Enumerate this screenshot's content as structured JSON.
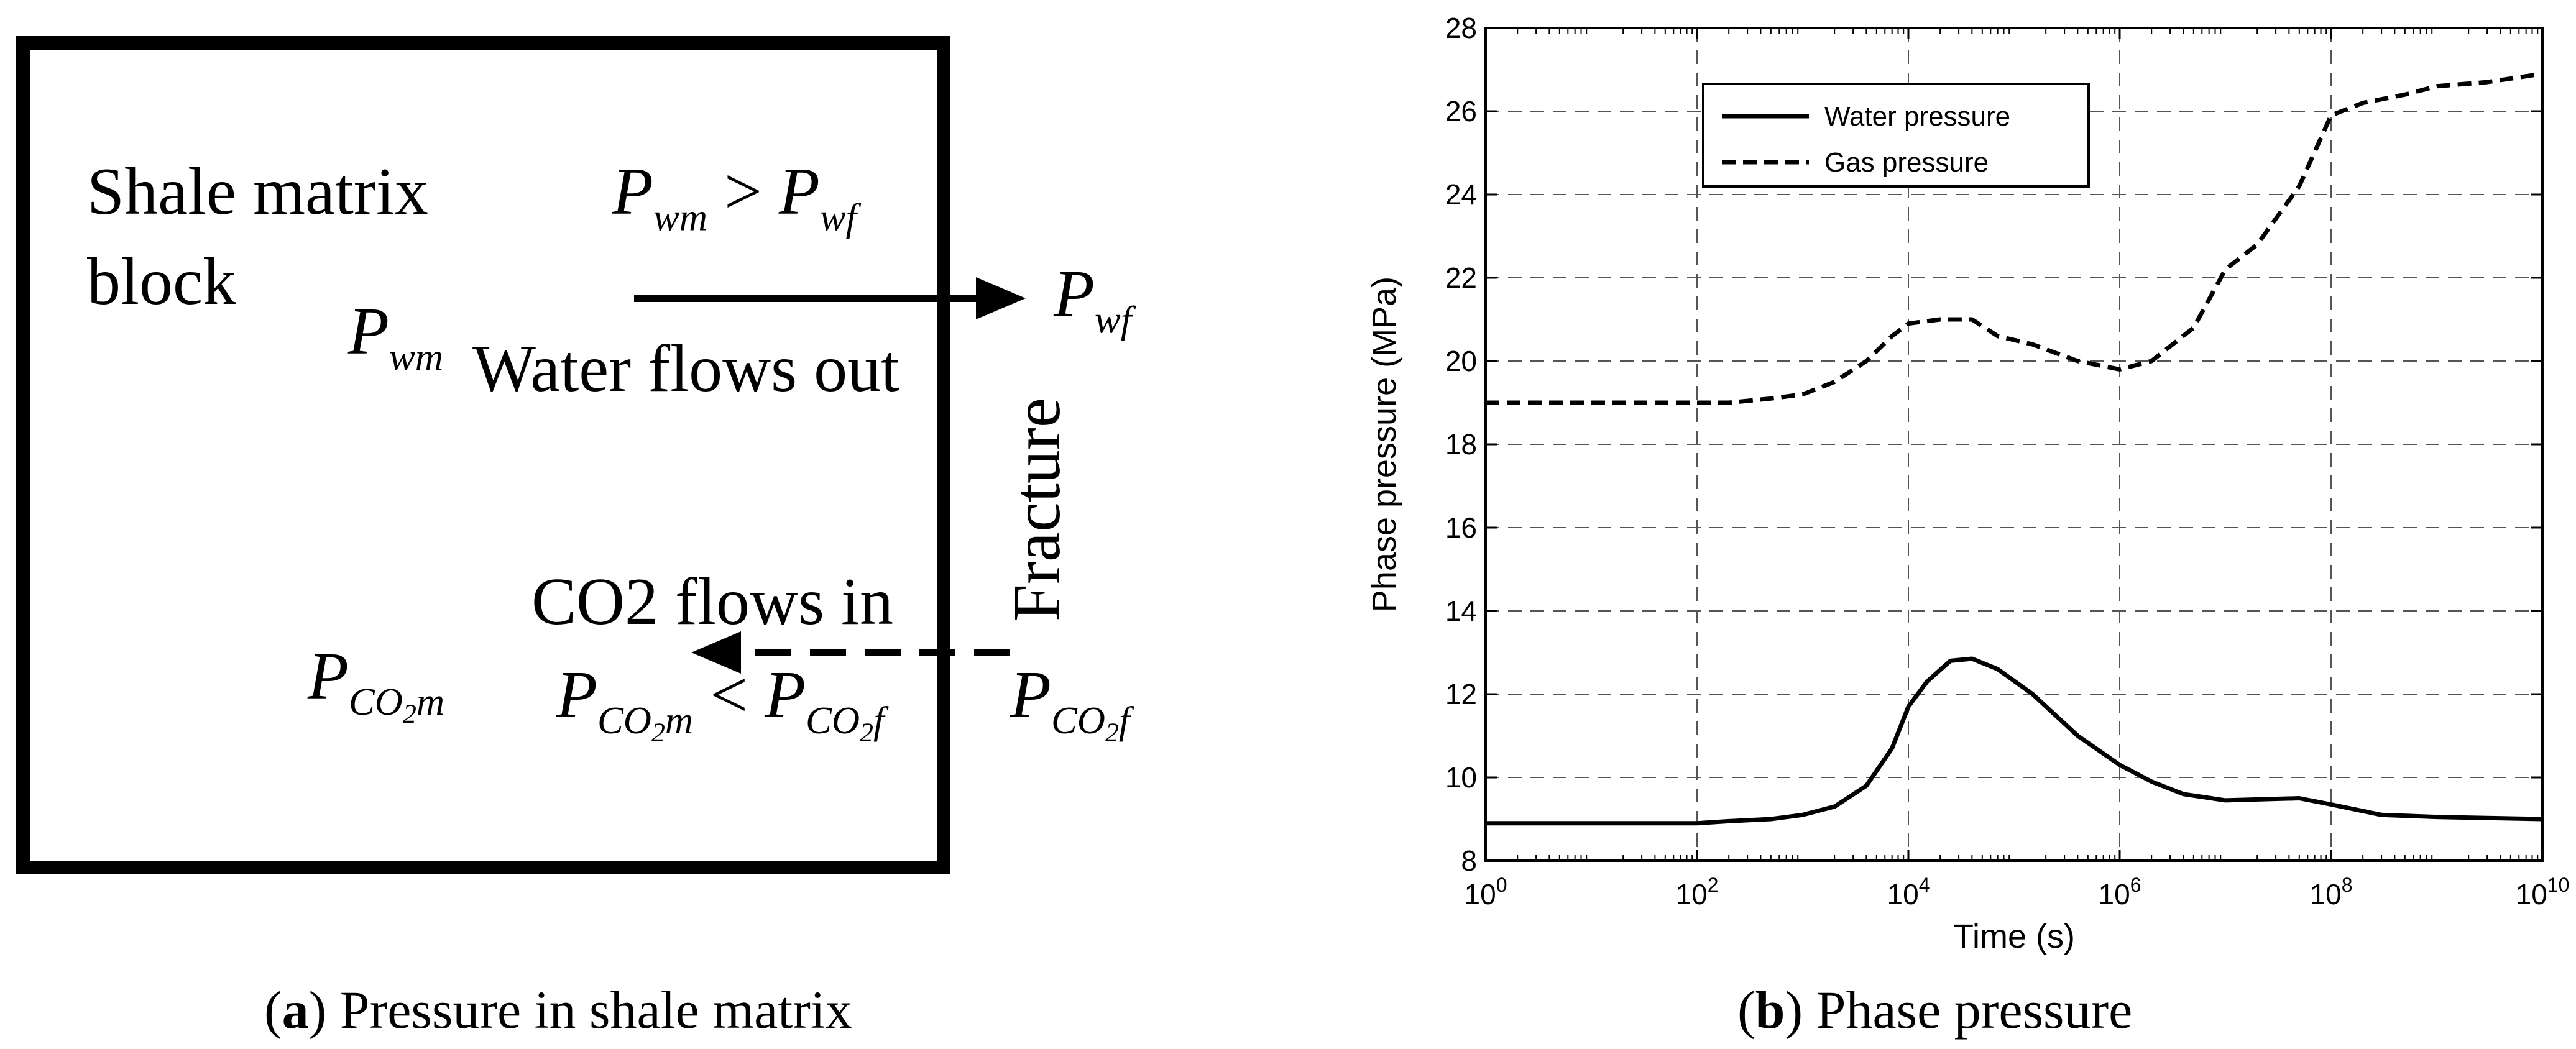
{
  "panel_a": {
    "matrix_label_line1": "Shale matrix",
    "matrix_label_line2": "block",
    "p_wm_gt": {
      "lhs": "P",
      "lhs_sub": "wm",
      "op": ">",
      "rhs": "P",
      "rhs_sub": "wf"
    },
    "p_wm": {
      "p": "P",
      "sub": "wm"
    },
    "p_wf": {
      "p": "P",
      "sub": "wf"
    },
    "water_flow": "Water flows out",
    "fracture": "Fracture",
    "co2_flow": "CO2 flows in",
    "p_co2m": {
      "p": "P",
      "sub": "CO",
      "subsub": "2",
      "sub_tail": "m"
    },
    "p_co2_lt": {
      "lhs": "P",
      "lhs_sub": "CO",
      "lhs_subsub": "2",
      "lhs_tail": "m",
      "op": "<",
      "rhs": "P",
      "rhs_sub": "CO",
      "rhs_subsub": "2",
      "rhs_tail": "f"
    },
    "p_co2f": {
      "p": "P",
      "sub": "CO",
      "subsub": "2",
      "sub_tail": "f"
    },
    "caption_letter": "a",
    "caption_text": " Pressure in shale matrix"
  },
  "panel_b": {
    "caption_letter": "b",
    "caption_text": " Phase pressure"
  },
  "chart_data": {
    "type": "line",
    "xlabel": "Time (s)",
    "ylabel": "Phase pressure (MPa)",
    "xscale": "log",
    "xlim": [
      1,
      10000000000
    ],
    "ylim": [
      8,
      28
    ],
    "x_ticks": [
      {
        "base": "10",
        "exp": "0"
      },
      {
        "base": "10",
        "exp": "2"
      },
      {
        "base": "10",
        "exp": "4"
      },
      {
        "base": "10",
        "exp": "6"
      },
      {
        "base": "10",
        "exp": "8"
      },
      {
        "base": "10",
        "exp": "10"
      }
    ],
    "y_ticks": [
      "8",
      "10",
      "12",
      "14",
      "16",
      "18",
      "20",
      "22",
      "24",
      "26",
      "28"
    ],
    "grid": true,
    "legend_position": "top-left",
    "series": [
      {
        "name": "Water pressure",
        "style": "solid",
        "x": [
          1,
          100,
          200,
          500,
          1000,
          2000,
          4000,
          7000,
          10000,
          15000,
          25000,
          40000,
          70000,
          150000,
          400000,
          1000000,
          2000000,
          4000000,
          10000000,
          50000000,
          100000000,
          300000000,
          1000000000,
          10000000000
        ],
        "y": [
          8.9,
          8.9,
          8.95,
          9.0,
          9.1,
          9.3,
          9.8,
          10.7,
          11.7,
          12.3,
          12.8,
          12.85,
          12.6,
          12.0,
          11.0,
          10.3,
          9.9,
          9.6,
          9.45,
          9.5,
          9.35,
          9.1,
          9.05,
          9.0
        ]
      },
      {
        "name": "Gas pressure",
        "style": "dashed",
        "x": [
          1,
          100,
          200,
          500,
          1000,
          2000,
          4000,
          7000,
          10000,
          20000,
          40000,
          70000,
          150000,
          400000,
          1000000,
          2000000,
          5000000,
          10000000,
          20000000,
          50000000,
          100000000,
          200000000,
          500000000,
          1000000000,
          3000000000,
          10000000000
        ],
        "y": [
          19.0,
          19.0,
          19.0,
          19.1,
          19.2,
          19.5,
          20.0,
          20.6,
          20.9,
          21.0,
          21.0,
          20.6,
          20.4,
          20.0,
          19.8,
          20.0,
          20.8,
          22.2,
          22.8,
          24.2,
          25.9,
          26.2,
          26.4,
          26.6,
          26.7,
          26.9
        ]
      }
    ]
  }
}
